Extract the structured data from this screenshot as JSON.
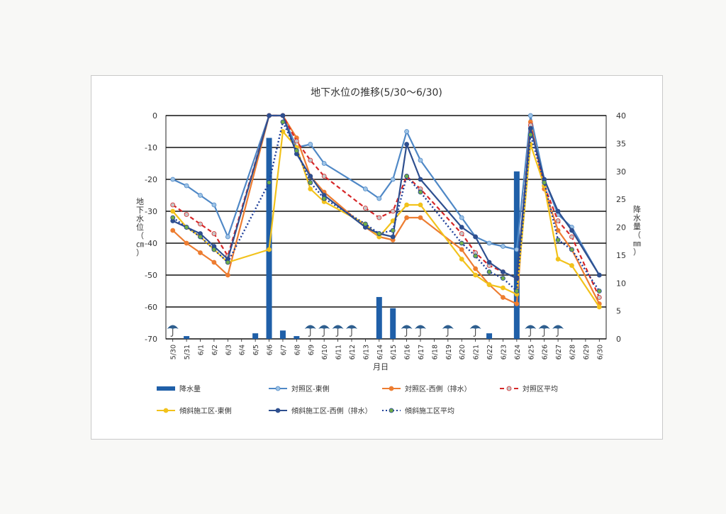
{
  "chart_data": {
    "type": "line",
    "title": "地下水位の推移(5/30〜6/30)",
    "xlabel": "月日",
    "ylabel_left": "地下水位（㎝）",
    "ylabel_right": "降水量（㎜）",
    "ylim_left": [
      -70,
      0
    ],
    "ylim_right": [
      0,
      40
    ],
    "yticks_left": [
      "0",
      "-10",
      "-20",
      "-30",
      "-40",
      "-50",
      "-60",
      "-70"
    ],
    "yticks_right": [
      "40",
      "35",
      "30",
      "25",
      "20",
      "15",
      "10",
      "5",
      "0"
    ],
    "categories": [
      "5/30",
      "5/31",
      "6/1",
      "6/2",
      "6/3",
      "6/4",
      "6/5",
      "6/6",
      "6/7",
      "6/8",
      "6/9",
      "6/10",
      "6/11",
      "6/12",
      "6/13",
      "6/14",
      "6/15",
      "6/16",
      "6/17",
      "6/18",
      "6/19",
      "6/20",
      "6/21",
      "6/22",
      "6/23",
      "6/24",
      "6/25",
      "6/26",
      "6/27",
      "6/28",
      "6/29",
      "6/30"
    ],
    "grid": true,
    "legend_position": "bottom",
    "rain": {
      "name": "降水量",
      "color": "#1f5fa8",
      "values": [
        0,
        0.5,
        0,
        0,
        0,
        0,
        1,
        36,
        1.5,
        0.5,
        0,
        0,
        0,
        0,
        0,
        7.5,
        5.5,
        0,
        0,
        0,
        0,
        0,
        0,
        1,
        0,
        30,
        0,
        0,
        0,
        0,
        0,
        0
      ]
    },
    "umbrella_days": [
      0,
      10,
      11,
      12,
      13,
      17,
      18,
      20,
      22,
      26,
      27,
      28
    ],
    "series": [
      {
        "name": "対照区-東側",
        "color": "#4f88c6",
        "marker": "#9dc3e6",
        "dash": "",
        "width": 2.2,
        "values": [
          -20,
          -22,
          -25,
          -28,
          -38,
          null,
          null,
          0,
          0,
          -10,
          -9,
          -15,
          null,
          null,
          -23,
          -26,
          -20,
          -5,
          -14,
          null,
          null,
          -32,
          -38,
          -40,
          -41,
          -42,
          0,
          -20,
          -31,
          -35,
          null,
          -50
        ]
      },
      {
        "name": "対照区-西側（排水）",
        "color": "#ed7d31",
        "marker": "#ed7d31",
        "dash": "",
        "width": 2.2,
        "values": [
          -36,
          -40,
          -43,
          -46,
          -50,
          null,
          null,
          0,
          0,
          -7,
          -19,
          -24,
          null,
          null,
          -35,
          -38,
          -39,
          -32,
          -32,
          null,
          null,
          -42,
          -48,
          -53,
          -57,
          -59,
          -2,
          -23,
          -36,
          -42,
          null,
          -59
        ]
      },
      {
        "name": "対照区平均",
        "color": "#d62728",
        "marker": "#c7c7c7",
        "dash": "6,4",
        "width": 2.2,
        "values": [
          -28,
          -31,
          -34,
          -37,
          -44,
          null,
          null,
          0,
          0,
          -8,
          -14,
          -19,
          null,
          null,
          -29,
          -32,
          -30,
          -19,
          -23,
          null,
          null,
          -37,
          -43,
          -47,
          -49,
          -51,
          -3,
          -22,
          -33,
          -38,
          null,
          -57
        ]
      },
      {
        "name": "傾斜施工区-東側",
        "color": "#f2c21b",
        "marker": "#f2c21b",
        "dash": "",
        "width": 2.2,
        "values": [
          -30,
          -35,
          -38,
          -42,
          -46,
          null,
          null,
          -42,
          -5,
          -10,
          -23,
          -27,
          null,
          null,
          -34,
          -38,
          -33,
          -28,
          -28,
          null,
          null,
          -45,
          -50,
          -53,
          -54,
          -56,
          -9,
          -22,
          -45,
          -47,
          null,
          -60
        ]
      },
      {
        "name": "傾斜施工区-西側（排水）",
        "color": "#2e4f8f",
        "marker": "#2e4f8f",
        "dash": "",
        "width": 2.2,
        "values": [
          -33,
          -35,
          -37,
          -41,
          -45,
          null,
          null,
          0,
          0,
          -12,
          -19,
          -25,
          null,
          null,
          -35,
          -37,
          -38,
          -9,
          -20,
          null,
          null,
          -35,
          -38,
          -46,
          -49,
          -51,
          -4,
          -20,
          -30,
          -36,
          null,
          -50
        ]
      },
      {
        "name": "傾斜施工区平均",
        "color": "#1f3f9a",
        "marker": "#70ad47",
        "dash": "2,3",
        "width": 2.4,
        "values": [
          -32,
          -35,
          -38,
          -42,
          -46,
          null,
          null,
          -21,
          -2,
          -11,
          -21,
          -26,
          null,
          null,
          -34,
          -37,
          -36,
          -19,
          -24,
          null,
          null,
          -40,
          -44,
          -49,
          -51,
          -55,
          -6,
          -21,
          -39,
          -42,
          null,
          -55
        ]
      }
    ]
  }
}
